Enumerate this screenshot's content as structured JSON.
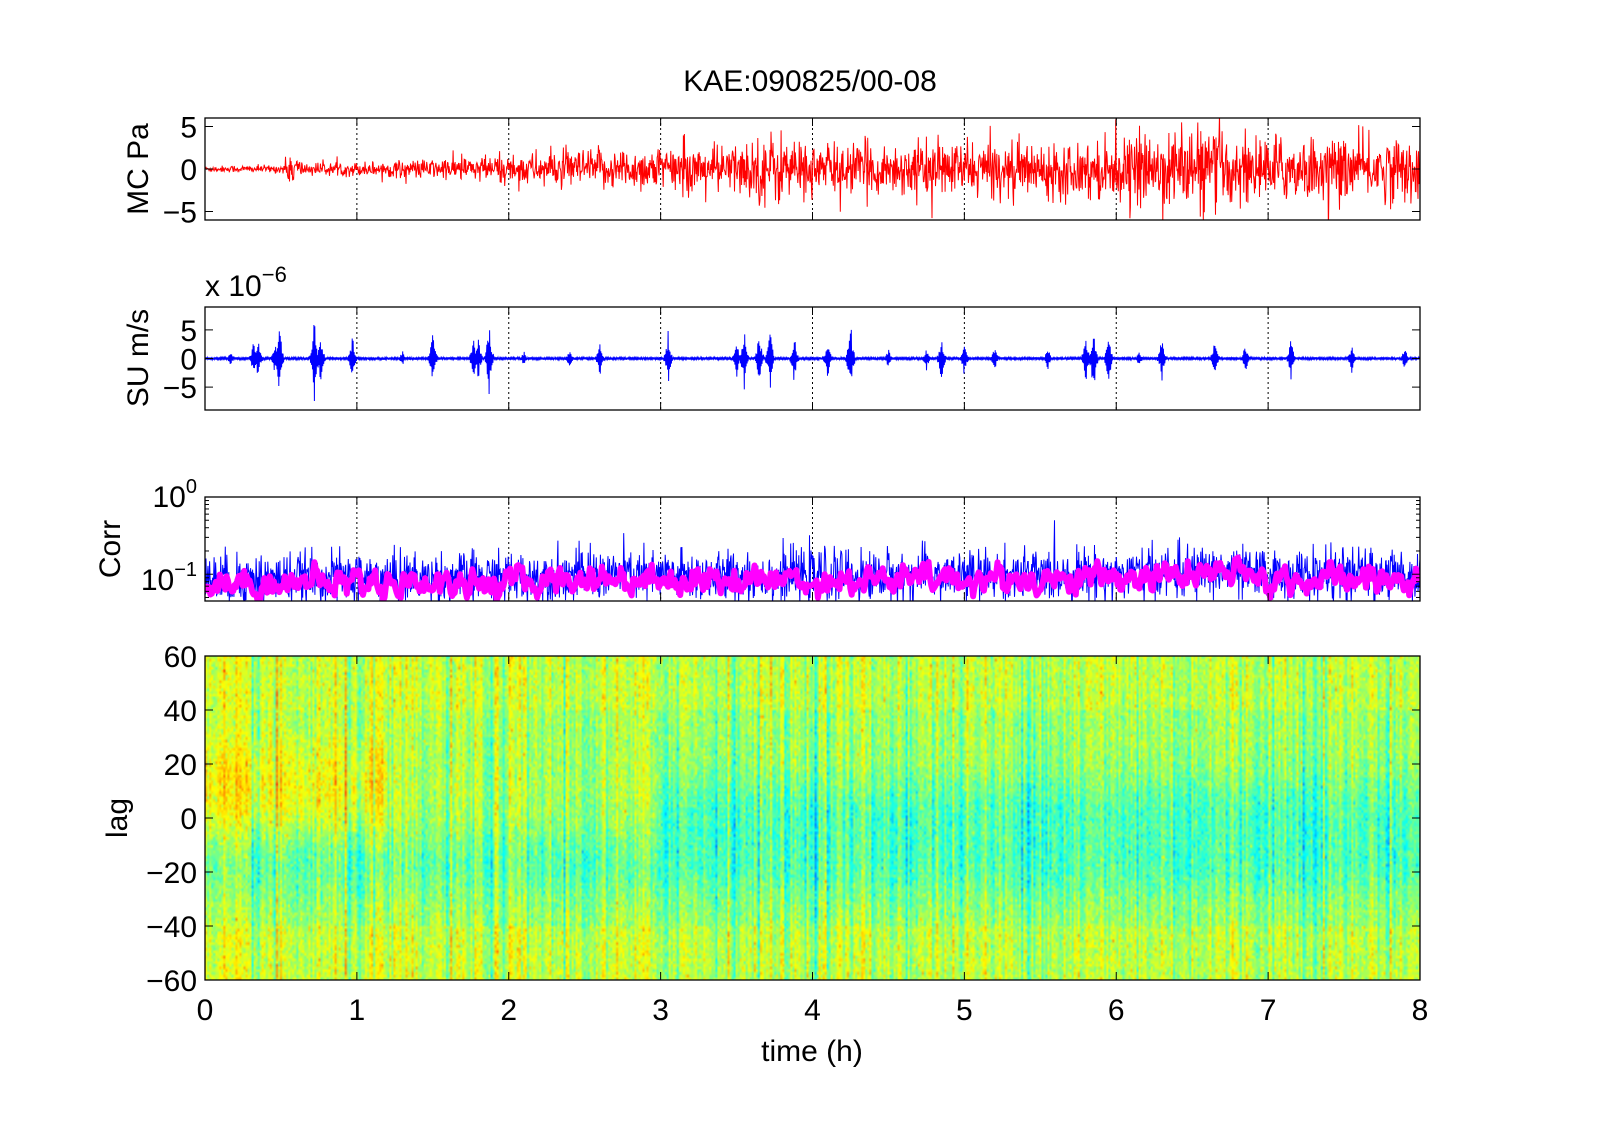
{
  "title": "KAE:090825/00-08",
  "colors": {
    "mc": "#ff0000",
    "su": "#0000ff",
    "corr_raw": "#0000ff",
    "corr_smooth": "#ff00ff",
    "colormap": "jet"
  },
  "chart_data": [
    {
      "type": "line",
      "panel": "MC",
      "ylabel": "MC Pa",
      "xlim": [
        0,
        8
      ],
      "ylim": [
        -6,
        6
      ],
      "yticks": [
        "5",
        "0",
        "−5"
      ],
      "xgrid": "dotted",
      "series": [
        {
          "color": "#ff0000",
          "amplitude_envelope_x": [
            0,
            0.5,
            0.58,
            0.65,
            1.0,
            1.5,
            2.0,
            2.5,
            3.0,
            3.5,
            3.75,
            4.0,
            4.5,
            5.0,
            5.5,
            6.0,
            6.5,
            7.0,
            7.5,
            8.0
          ],
          "amplitude_envelope_y": [
            0.4,
            0.5,
            2.5,
            0.8,
            0.9,
            1.3,
            2.0,
            2.5,
            2.9,
            3.2,
            5.0,
            3.3,
            3.3,
            3.5,
            3.4,
            3.8,
            5.5,
            4.2,
            4.0,
            4.2
          ]
        }
      ]
    },
    {
      "type": "line",
      "panel": "SU",
      "ylabel": "SU m/s",
      "scale_label": "x 10",
      "scale_exponent": "−6",
      "xlim": [
        0,
        8
      ],
      "ylim": [
        -9,
        9
      ],
      "yticks": [
        "5",
        "0",
        "−5"
      ],
      "xgrid": "dotted",
      "series": [
        {
          "color": "#0000ff",
          "baseline_amplitude": 0.6,
          "burst_times": [
            0.17,
            0.32,
            0.35,
            0.46,
            0.49,
            0.72,
            0.76,
            0.97,
            1.3,
            1.5,
            1.77,
            1.8,
            1.87,
            2.1,
            2.4,
            2.6,
            3.05,
            3.5,
            3.55,
            3.65,
            3.72,
            3.88,
            4.1,
            4.25,
            4.5,
            4.75,
            4.85,
            5.0,
            5.2,
            5.55,
            5.8,
            5.85,
            5.95,
            6.15,
            6.3,
            6.65,
            6.85,
            7.15,
            7.55,
            7.9
          ],
          "burst_amplitudes": [
            1.5,
            3.5,
            4,
            3,
            8,
            7.5,
            5.5,
            5,
            1.5,
            6,
            5,
            4,
            8,
            1.5,
            2,
            3.5,
            5.5,
            4,
            6,
            6,
            7,
            5,
            4.5,
            8,
            2,
            2.5,
            5,
            3.5,
            2.5,
            2.5,
            5,
            8,
            6,
            1.5,
            4.5,
            4.5,
            3.5,
            4.5,
            3,
            2.5
          ]
        }
      ]
    },
    {
      "type": "line",
      "panel": "Corr",
      "ylabel": "Corr",
      "yscale": "log",
      "xlim": [
        0,
        8
      ],
      "ylim": [
        0.045,
        1
      ],
      "yticks": [
        {
          "base": "10",
          "exp": "0"
        },
        {
          "base": "10",
          "exp": "−1"
        }
      ],
      "xgrid": "dotted",
      "series": [
        {
          "color": "#0000ff",
          "style": "raw",
          "level_x": [
            0,
            1,
            2,
            2.45,
            3,
            4,
            5,
            6,
            6.7,
            7,
            8
          ],
          "level_y": [
            0.085,
            0.09,
            0.09,
            0.1,
            0.095,
            0.095,
            0.095,
            0.1,
            0.11,
            0.095,
            0.1
          ]
        },
        {
          "color": "#ff00ff",
          "style": "smoothed",
          "level_x": [
            0,
            1,
            2,
            2.45,
            3,
            4,
            5,
            6,
            6.7,
            7,
            8
          ],
          "level_y": [
            0.075,
            0.08,
            0.075,
            0.09,
            0.085,
            0.085,
            0.085,
            0.09,
            0.1,
            0.085,
            0.085
          ]
        }
      ]
    },
    {
      "type": "heatmap",
      "panel": "lag",
      "ylabel": "lag",
      "xlabel": "time (h)",
      "xlim": [
        0,
        8
      ],
      "ylim": [
        -60,
        60
      ],
      "xticks": [
        "0",
        "1",
        "2",
        "3",
        "4",
        "5",
        "6",
        "7",
        "8"
      ],
      "yticks": [
        "60",
        "40",
        "20",
        "0",
        "−20",
        "−40",
        "−60"
      ],
      "colormap": "jet",
      "features": [
        {
          "name": "warm band",
          "x": [
            0,
            1.2
          ],
          "lag": [
            0,
            25
          ]
        },
        {
          "name": "cool band",
          "x": [
            0,
            8
          ],
          "lag": [
            -25,
            -10
          ]
        },
        {
          "name": "cool band",
          "x": [
            3,
            8
          ],
          "lag": [
            -5,
            10
          ]
        }
      ]
    }
  ]
}
